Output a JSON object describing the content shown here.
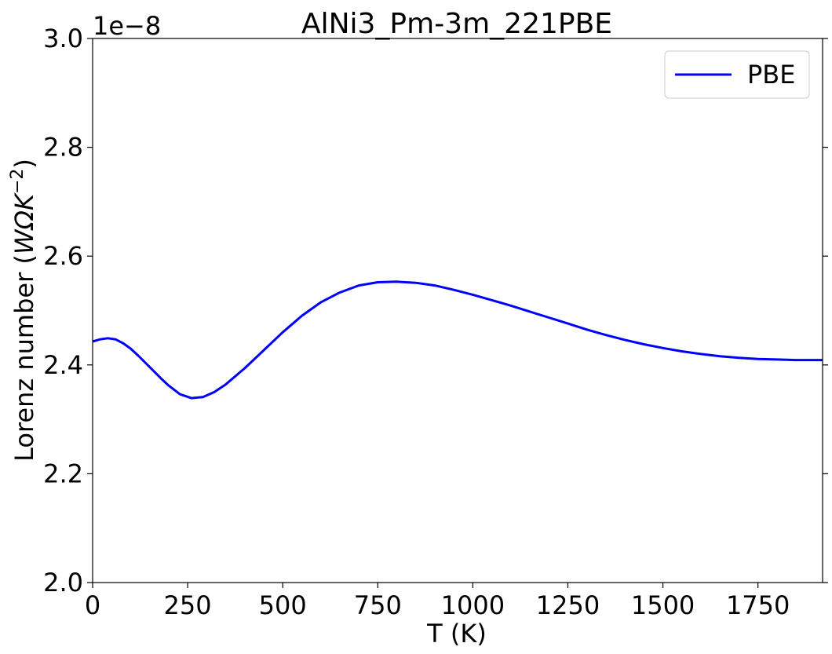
{
  "chart_data": {
    "type": "line",
    "title": "AlNi3_Pm-3m_221PBE",
    "xlabel": "T (K)",
    "ylabel_main": "Lorenz number (",
    "ylabel_math": "WΩK",
    "ylabel_exp": "−2",
    "ylabel_close": ")",
    "offset_text": "1e−8",
    "xlim": [
      0,
      1920
    ],
    "ylim": [
      2.0,
      3.0
    ],
    "x_ticks": [
      0,
      250,
      500,
      750,
      1000,
      1250,
      1500,
      1750
    ],
    "x_tick_labels": [
      "0",
      "250",
      "500",
      "750",
      "1000",
      "1250",
      "1500",
      "1750"
    ],
    "y_ticks": [
      2.0,
      2.2,
      2.4,
      2.6,
      2.8,
      3.0
    ],
    "y_tick_labels": [
      "2.0",
      "2.2",
      "2.4",
      "2.6",
      "2.8",
      "3.0"
    ],
    "grid": false,
    "legend_position": "top-right",
    "series": [
      {
        "name": "PBE",
        "color": "#0000ff",
        "x": [
          0,
          20,
          40,
          60,
          80,
          100,
          120,
          150,
          180,
          200,
          230,
          260,
          290,
          320,
          350,
          400,
          450,
          500,
          550,
          600,
          650,
          700,
          750,
          800,
          850,
          900,
          950,
          1000,
          1050,
          1100,
          1150,
          1200,
          1250,
          1300,
          1350,
          1400,
          1450,
          1500,
          1550,
          1600,
          1650,
          1700,
          1750,
          1800,
          1850,
          1900,
          1920
        ],
        "y": [
          2.443,
          2.447,
          2.449,
          2.447,
          2.44,
          2.43,
          2.417,
          2.396,
          2.375,
          2.362,
          2.346,
          2.339,
          2.341,
          2.35,
          2.364,
          2.394,
          2.427,
          2.46,
          2.49,
          2.515,
          2.533,
          2.546,
          2.552,
          2.553,
          2.551,
          2.546,
          2.538,
          2.529,
          2.519,
          2.509,
          2.498,
          2.487,
          2.476,
          2.465,
          2.455,
          2.446,
          2.438,
          2.431,
          2.425,
          2.42,
          2.416,
          2.413,
          2.411,
          2.41,
          2.409,
          2.409,
          2.409
        ]
      }
    ]
  }
}
